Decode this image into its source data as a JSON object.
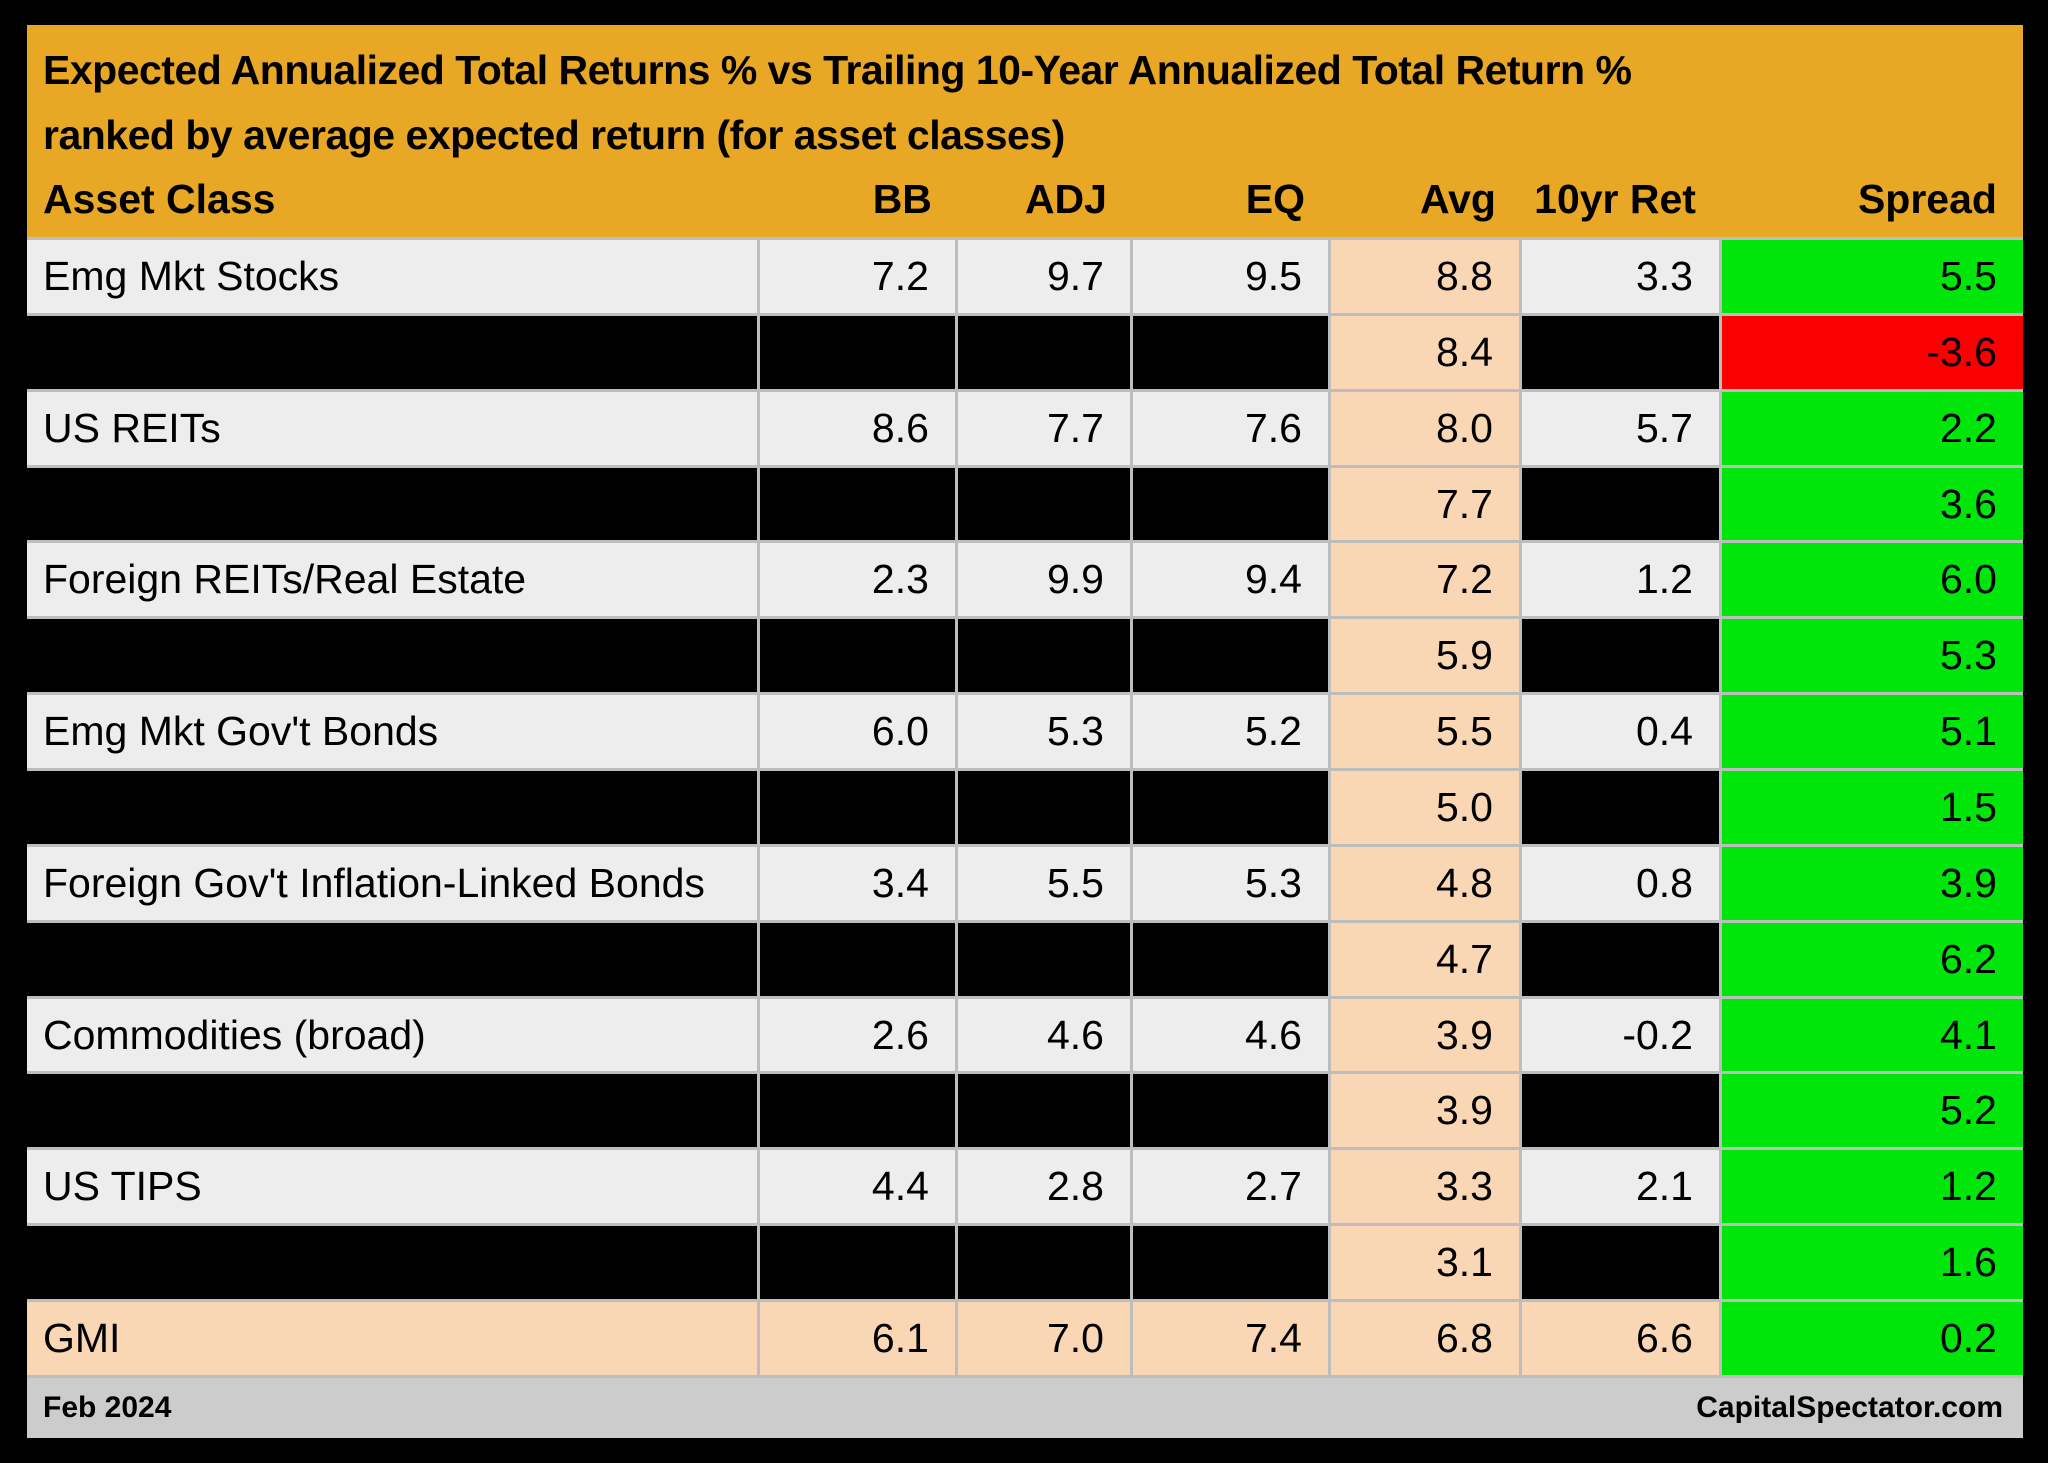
{
  "header": {
    "title_line1": "Expected Annualized Total Returns % vs Trailing 10-Year Annualized Total Return %",
    "title_line2": "ranked by average expected return (for asset classes)"
  },
  "columns": [
    {
      "key": "asset",
      "label": "Asset Class"
    },
    {
      "key": "bb",
      "label": "BB"
    },
    {
      "key": "adj",
      "label": "ADJ"
    },
    {
      "key": "eq",
      "label": "EQ"
    },
    {
      "key": "avg",
      "label": "Avg"
    },
    {
      "key": "ret10",
      "label": "10yr Ret"
    },
    {
      "key": "spread",
      "label": "Spread"
    }
  ],
  "chart_data": {
    "type": "table",
    "title": "Expected Annualized Total Returns % vs Trailing 10-Year Annualized Total Return %",
    "subtitle": "ranked by average expected return (for asset classes)",
    "columns": [
      "Asset Class",
      "BB",
      "ADJ",
      "EQ",
      "Avg",
      "10yr Ret",
      "Spread"
    ],
    "rows": [
      {
        "asset": "Emg Mkt Stocks",
        "bb": 7.2,
        "adj": 9.7,
        "eq": 9.5,
        "avg": 8.8,
        "ret10": 3.3,
        "spread": 5.5,
        "redacted": false,
        "highlight": false
      },
      {
        "asset": null,
        "bb": null,
        "adj": null,
        "eq": null,
        "avg": 8.4,
        "ret10": null,
        "spread": -3.6,
        "redacted": true,
        "highlight": false
      },
      {
        "asset": "US REITs",
        "bb": 8.6,
        "adj": 7.7,
        "eq": 7.6,
        "avg": 8.0,
        "ret10": 5.7,
        "spread": 2.2,
        "redacted": false,
        "highlight": false
      },
      {
        "asset": null,
        "bb": null,
        "adj": null,
        "eq": null,
        "avg": 7.7,
        "ret10": null,
        "spread": 3.6,
        "redacted": true,
        "highlight": false
      },
      {
        "asset": "Foreign REITs/Real Estate",
        "bb": 2.3,
        "adj": 9.9,
        "eq": 9.4,
        "avg": 7.2,
        "ret10": 1.2,
        "spread": 6.0,
        "redacted": false,
        "highlight": false
      },
      {
        "asset": null,
        "bb": null,
        "adj": null,
        "eq": null,
        "avg": 5.9,
        "ret10": null,
        "spread": 5.3,
        "redacted": true,
        "highlight": false
      },
      {
        "asset": "Emg Mkt Gov't Bonds",
        "bb": 6.0,
        "adj": 5.3,
        "eq": 5.2,
        "avg": 5.5,
        "ret10": 0.4,
        "spread": 5.1,
        "redacted": false,
        "highlight": false
      },
      {
        "asset": null,
        "bb": null,
        "adj": null,
        "eq": null,
        "avg": 5.0,
        "ret10": null,
        "spread": 1.5,
        "redacted": true,
        "highlight": false
      },
      {
        "asset": "Foreign Gov't Inflation-Linked Bonds",
        "bb": 3.4,
        "adj": 5.5,
        "eq": 5.3,
        "avg": 4.8,
        "ret10": 0.8,
        "spread": 3.9,
        "redacted": false,
        "highlight": false
      },
      {
        "asset": null,
        "bb": null,
        "adj": null,
        "eq": null,
        "avg": 4.7,
        "ret10": null,
        "spread": 6.2,
        "redacted": true,
        "highlight": false
      },
      {
        "asset": "Commodities (broad)",
        "bb": 2.6,
        "adj": 4.6,
        "eq": 4.6,
        "avg": 3.9,
        "ret10": -0.2,
        "spread": 4.1,
        "redacted": false,
        "highlight": false
      },
      {
        "asset": null,
        "bb": null,
        "adj": null,
        "eq": null,
        "avg": 3.9,
        "ret10": null,
        "spread": 5.2,
        "redacted": true,
        "highlight": false
      },
      {
        "asset": "US TIPS",
        "bb": 4.4,
        "adj": 2.8,
        "eq": 2.7,
        "avg": 3.3,
        "ret10": 2.1,
        "spread": 1.2,
        "redacted": false,
        "highlight": false
      },
      {
        "asset": null,
        "bb": null,
        "adj": null,
        "eq": null,
        "avg": 3.1,
        "ret10": null,
        "spread": 1.6,
        "redacted": true,
        "highlight": false
      },
      {
        "asset": "GMI",
        "bb": 6.1,
        "adj": 7.0,
        "eq": 7.4,
        "avg": 6.8,
        "ret10": 6.6,
        "spread": 0.2,
        "redacted": false,
        "highlight": true
      }
    ]
  },
  "footer": {
    "left": "Feb 2024",
    "right": "CapitalSpectator.com"
  },
  "colors": {
    "page_bg": "#000000",
    "header_bg": "#E9A726",
    "row_bg": "#EDEDED",
    "avg_col_bg": "#FAD7B4",
    "highlight_row_bg": "#FAD7B4",
    "spread_positive_bg": "#00E60A",
    "spread_negative_bg": "#FB0000",
    "redacted_bg": "#000000",
    "gridline": "#BDBDBD",
    "footer_bg": "#CCCCCC"
  }
}
